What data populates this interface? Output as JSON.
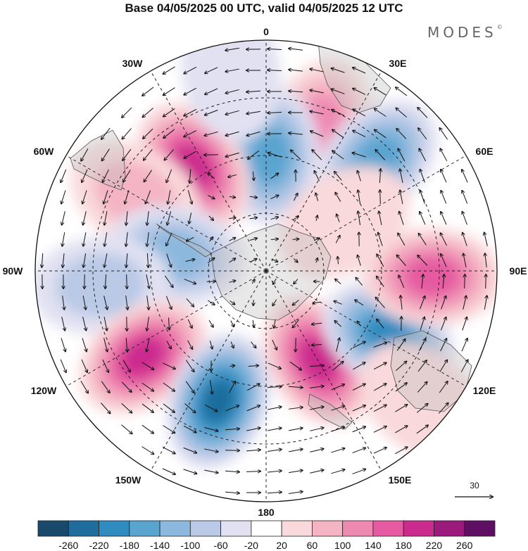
{
  "title": "Base 04/05/2025 00 UTC, valid 04/05/2025 12 UTC",
  "brand": "MODES",
  "brand_mark": "©",
  "projection": "south-polar-stereographic",
  "longitude_labels": [
    {
      "text": "0",
      "lon": 0
    },
    {
      "text": "30E",
      "lon": 30
    },
    {
      "text": "60E",
      "lon": 60
    },
    {
      "text": "90E",
      "lon": 90
    },
    {
      "text": "120E",
      "lon": 120
    },
    {
      "text": "150E",
      "lon": 150
    },
    {
      "text": "180",
      "lon": 180
    },
    {
      "text": "150W",
      "lon": -150
    },
    {
      "text": "120W",
      "lon": -120
    },
    {
      "text": "90W",
      "lon": -90
    },
    {
      "text": "60W",
      "lon": -60
    },
    {
      "text": "30W",
      "lon": -30
    }
  ],
  "vector_reference": {
    "value": "30",
    "icon": "arrow-right-icon"
  },
  "colorbar": {
    "ticks": [
      "-260",
      "-220",
      "-180",
      "-140",
      "-100",
      "-60",
      "-20",
      "20",
      "60",
      "100",
      "140",
      "180",
      "220",
      "260"
    ],
    "colors": [
      "#1a4a6b",
      "#1e6d9c",
      "#2f8bc0",
      "#5aa4d0",
      "#8db8dd",
      "#b9c9e6",
      "#e1e1f2",
      "#ffffff",
      "#f9d9db",
      "#f4b4c3",
      "#ee8ab2",
      "#e55aa0",
      "#cc2b8e",
      "#9c1a7c",
      "#5e0f64"
    ]
  },
  "anomalies": [
    {
      "lon": 20,
      "colat": 0.66,
      "value": 110
    },
    {
      "lon": 2,
      "colat": 0.5,
      "value": -160
    },
    {
      "lon": -35,
      "colat": 0.55,
      "value": 210
    },
    {
      "lon": -60,
      "colat": 0.65,
      "value": 80
    },
    {
      "lon": -80,
      "colat": 0.4,
      "value": -130
    },
    {
      "lon": -95,
      "colat": 0.72,
      "value": -70
    },
    {
      "lon": -125,
      "colat": 0.65,
      "value": 190
    },
    {
      "lon": -160,
      "colat": 0.6,
      "value": -240
    },
    {
      "lon": 150,
      "colat": 0.45,
      "value": 210
    },
    {
      "lon": 118,
      "colat": 0.6,
      "value": -200
    },
    {
      "lon": 92,
      "colat": 0.72,
      "value": 170
    },
    {
      "lon": 45,
      "colat": 0.68,
      "value": -180
    },
    {
      "lon": 58,
      "colat": 0.4,
      "value": 50
    },
    {
      "lon": -10,
      "colat": 0.88,
      "value": -50
    },
    {
      "lon": 130,
      "colat": 0.88,
      "value": 30
    }
  ]
}
